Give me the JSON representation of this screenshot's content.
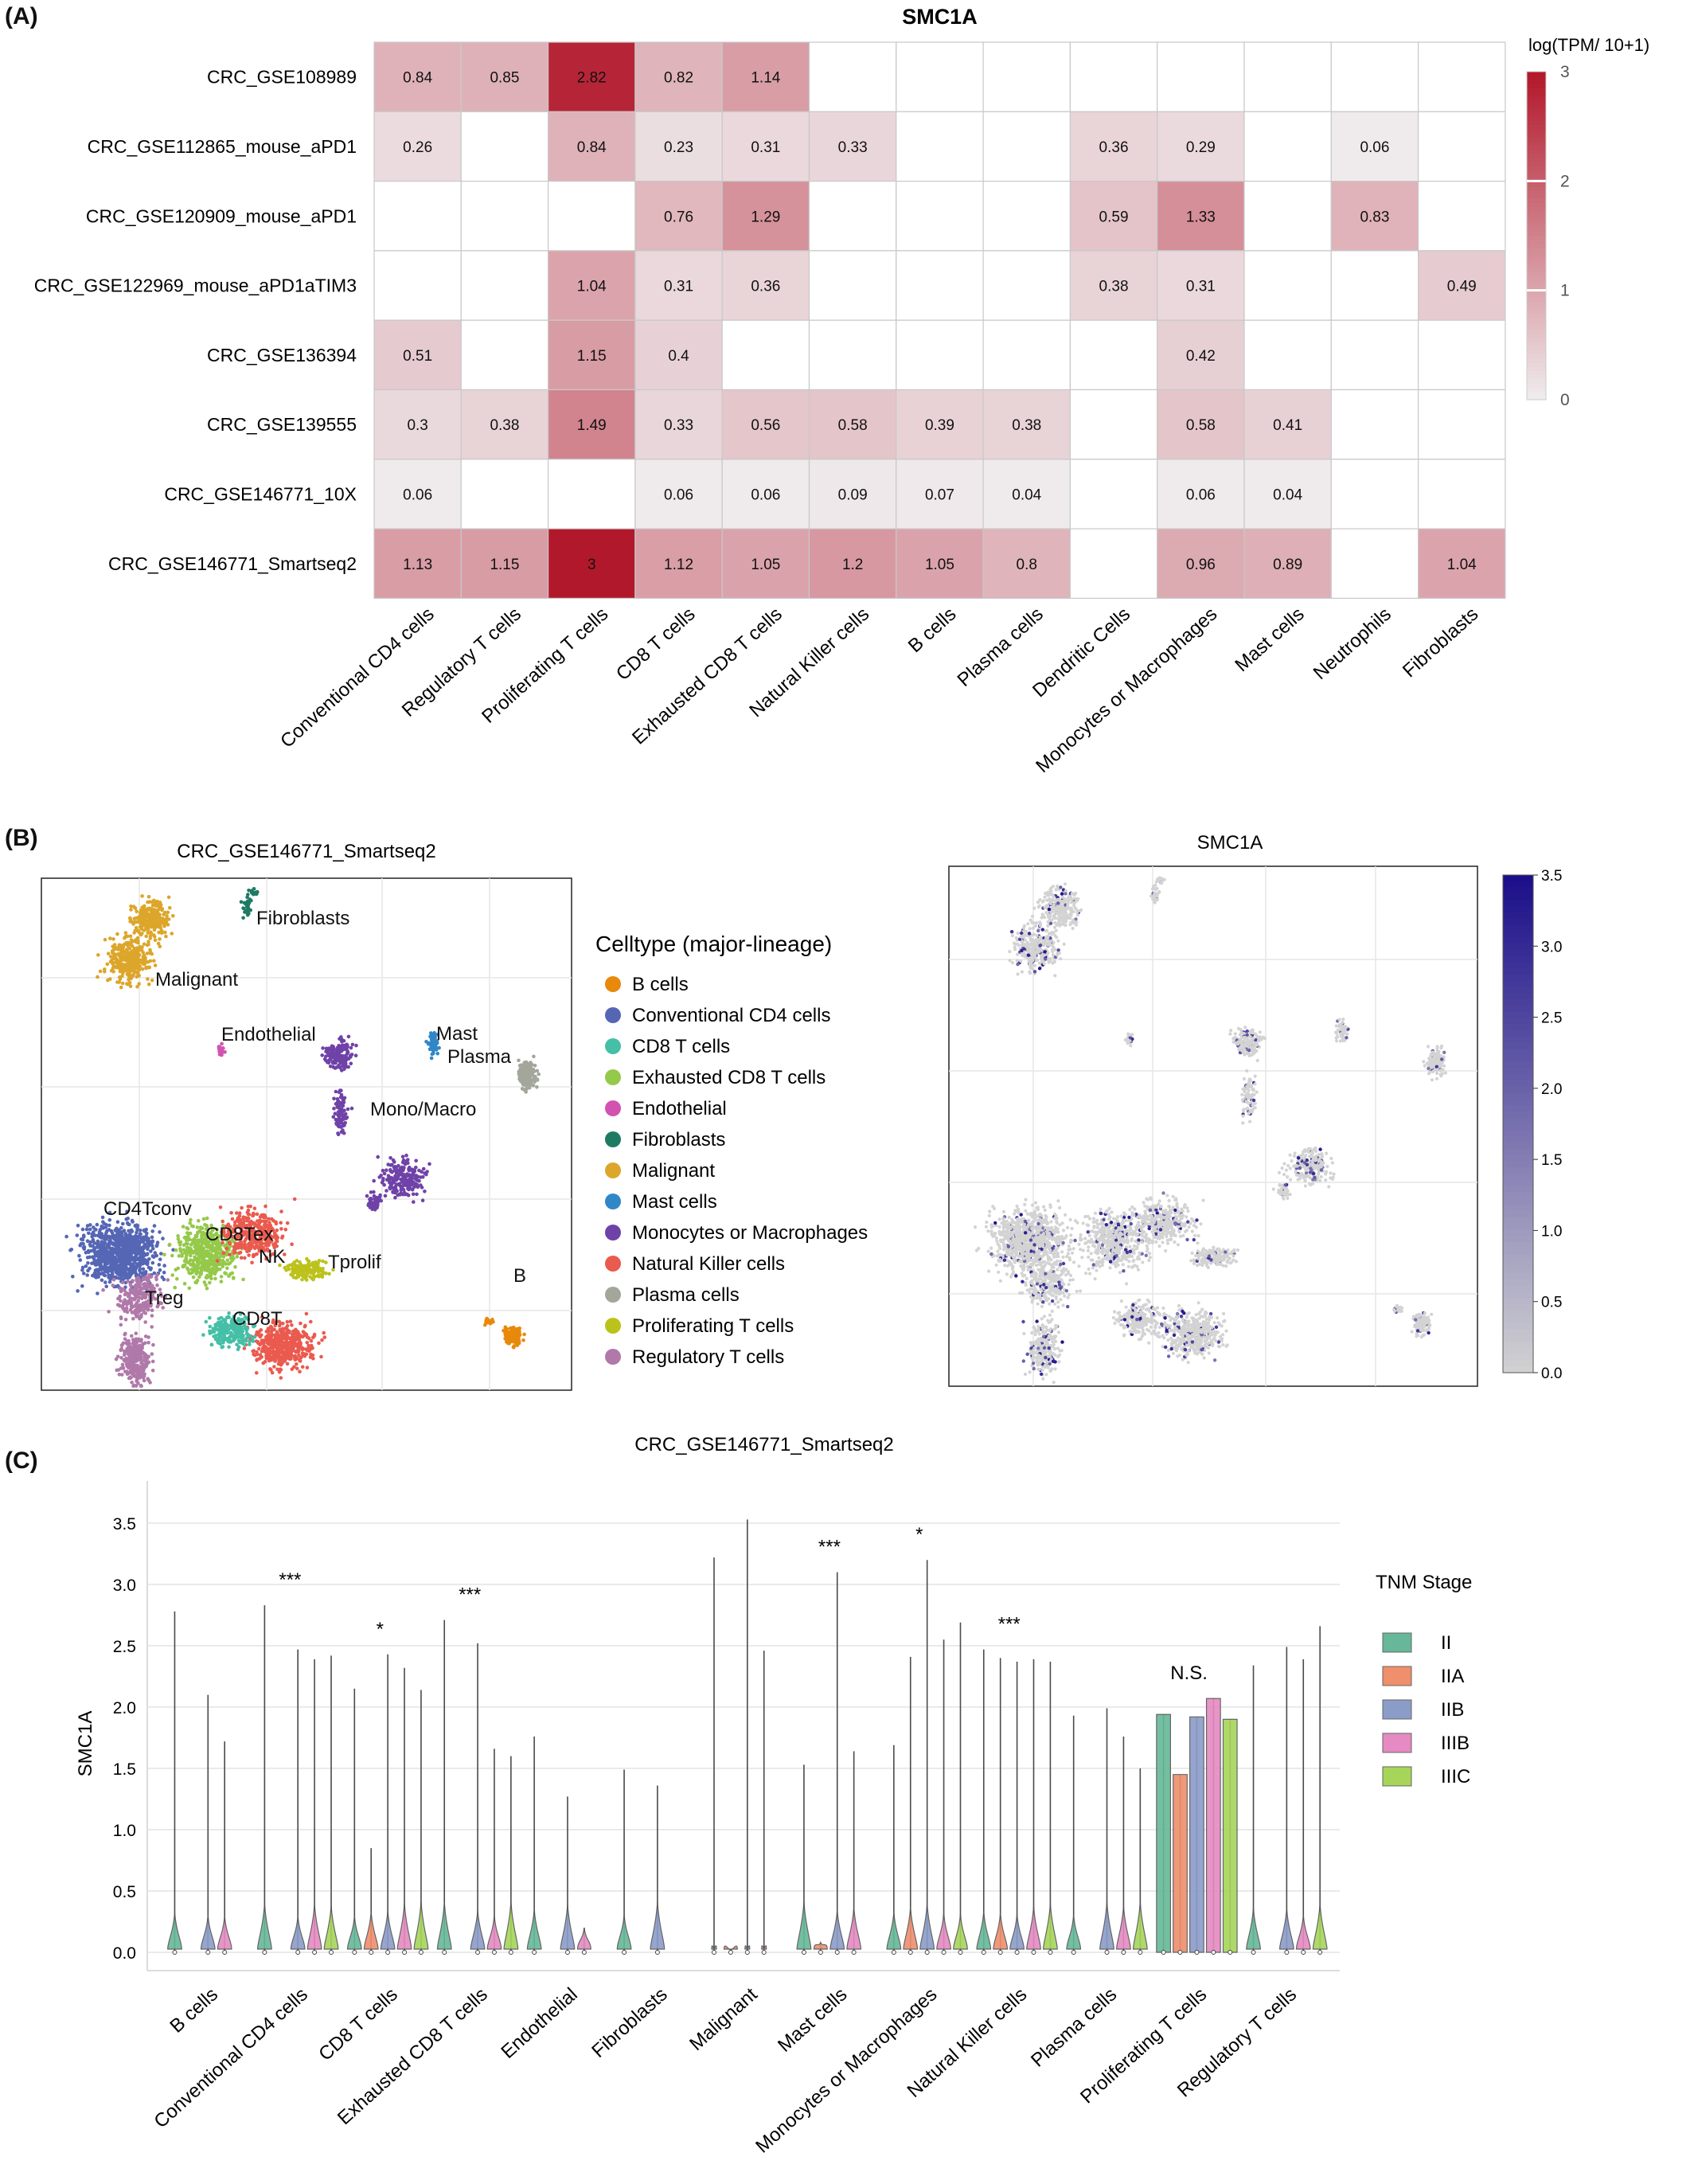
{
  "panels": {
    "a_label": "(A)",
    "b_label": "(B)",
    "c_label": "(C)"
  },
  "chart_data": [
    {
      "id": "heatmap",
      "type": "heatmap",
      "title": "SMC1A",
      "colorbar_title": "log(TPM/ 10+1)",
      "colorbar_ticks": [
        0,
        1,
        2,
        3
      ],
      "vmin": 0,
      "vmax": 3,
      "color_low": "#f0eef0",
      "color_high": "#b2182b",
      "rows": [
        "CRC_GSE108989",
        "CRC_GSE112865_mouse_aPD1",
        "CRC_GSE120909_mouse_aPD1",
        "CRC_GSE122969_mouse_aPD1aTIM3",
        "CRC_GSE136394",
        "CRC_GSE139555",
        "CRC_GSE146771_10X",
        "CRC_GSE146771_Smartseq2"
      ],
      "columns": [
        "Conventional CD4 cells",
        "Regulatory T cells",
        "Proliferating T cells",
        "CD8 T cells",
        "Exhausted CD8 T cells",
        "Natural Killer cells",
        "B cells",
        "Plasma cells",
        "Dendritic Cells",
        "Monocytes or Macrophages",
        "Mast cells",
        "Neutrophils",
        "Fibroblasts"
      ],
      "values": [
        [
          0.84,
          0.85,
          2.82,
          0.82,
          1.14,
          null,
          null,
          null,
          null,
          null,
          null,
          null,
          null
        ],
        [
          0.26,
          null,
          0.84,
          0.23,
          0.31,
          0.33,
          null,
          null,
          0.36,
          0.29,
          null,
          0.06,
          null
        ],
        [
          null,
          null,
          null,
          0.76,
          1.29,
          null,
          null,
          null,
          0.59,
          1.33,
          null,
          0.83,
          null
        ],
        [
          null,
          null,
          1.04,
          0.31,
          0.36,
          null,
          null,
          null,
          0.38,
          0.31,
          null,
          null,
          0.49
        ],
        [
          0.51,
          null,
          1.15,
          0.4,
          null,
          null,
          null,
          null,
          null,
          0.42,
          null,
          null,
          null
        ],
        [
          0.3,
          0.38,
          1.49,
          0.33,
          0.56,
          0.58,
          0.39,
          0.38,
          null,
          0.58,
          0.41,
          null,
          null
        ],
        [
          0.06,
          null,
          null,
          0.06,
          0.06,
          0.09,
          0.07,
          0.04,
          null,
          0.06,
          0.04,
          null,
          null
        ],
        [
          1.13,
          1.15,
          3,
          1.12,
          1.05,
          1.2,
          1.05,
          0.8,
          null,
          0.96,
          0.89,
          null,
          1.04
        ]
      ]
    },
    {
      "id": "umap_celltype",
      "type": "scatter",
      "title": "CRC_GSE146771_Smartseq2",
      "legend_title": "Celltype (major-lineage)",
      "legend_position": "right",
      "legend": [
        {
          "name": "B cells",
          "color": "#e8890c"
        },
        {
          "name": "Conventional CD4 cells",
          "color": "#5566b5"
        },
        {
          "name": "CD8 T cells",
          "color": "#45bfa7"
        },
        {
          "name": "Exhausted CD8 T cells",
          "color": "#95c94a"
        },
        {
          "name": "Endothelial",
          "color": "#d252b0"
        },
        {
          "name": "Fibroblasts",
          "color": "#1f7a64"
        },
        {
          "name": "Malignant",
          "color": "#dca62b"
        },
        {
          "name": "Mast cells",
          "color": "#2f87c8"
        },
        {
          "name": "Monocytes or Macrophages",
          "color": "#6f42a8"
        },
        {
          "name": "Natural Killer cells",
          "color": "#ea5a4e"
        },
        {
          "name": "Plasma cells",
          "color": "#a3a69a"
        },
        {
          "name": "Proliferating T cells",
          "color": "#bcc21c"
        },
        {
          "name": "Regulatory T cells",
          "color": "#b079aa"
        }
      ],
      "cluster_labels": [
        "Fibroblasts",
        "Malignant",
        "Endothelial",
        "Mast",
        "Plasma",
        "Mono/Macro",
        "CD4Tconv",
        "CD8Tex",
        "NK",
        "Tprolif",
        "B",
        "Treg",
        "CD8T"
      ]
    },
    {
      "id": "umap_expression",
      "type": "scatter",
      "title": "SMC1A",
      "colorbar_ticks": [
        "0.0",
        "0.5",
        "1.0",
        "1.5",
        "2.0",
        "2.5",
        "3.0",
        "3.5"
      ],
      "colorbar_low": "#d3d3d3",
      "colorbar_high": "#1c0f8a",
      "range": [
        0,
        3.5
      ]
    },
    {
      "id": "violin",
      "type": "violin",
      "title": "CRC_GSE146771_Smartseq2",
      "ylabel": "SMC1A",
      "xlabel": "",
      "ylim": [
        0,
        3.5
      ],
      "yticks": [
        "0.0",
        "0.5",
        "1.0",
        "1.5",
        "2.0",
        "2.5",
        "3.0",
        "3.5"
      ],
      "legend_title": "TNM Stage",
      "legend_position": "right",
      "series": [
        {
          "name": "II",
          "color": "#66b898"
        },
        {
          "name": "IIA",
          "color": "#ef8f6c"
        },
        {
          "name": "IIB",
          "color": "#8b9cc8"
        },
        {
          "name": "IIIB",
          "color": "#e58ac2"
        },
        {
          "name": "IIIC",
          "color": "#a6d55a"
        }
      ],
      "categories": [
        "B cells",
        "Conventional CD4 cells",
        "CD8 T cells",
        "Exhausted CD8 T cells",
        "Endothelial",
        "Fibroblasts",
        "Malignant",
        "Mast cells",
        "Monocytes or Macrophages",
        "Natural Killer cells",
        "Plasma cells",
        "Proliferating T cells",
        "Regulatory T cells"
      ],
      "significance": [
        "",
        "***",
        "*",
        "***",
        "",
        "",
        "",
        "***",
        "*",
        "***",
        "",
        "N.S.",
        ""
      ],
      "max_values": [
        [
          2.78,
          null,
          2.1,
          1.72,
          null
        ],
        [
          2.83,
          null,
          2.47,
          2.39,
          2.42
        ],
        [
          2.15,
          0.85,
          2.43,
          2.32,
          2.14
        ],
        [
          2.71,
          null,
          2.52,
          1.66,
          1.6
        ],
        [
          1.76,
          null,
          1.27,
          0.2,
          null
        ],
        [
          1.49,
          null,
          1.36,
          null,
          null
        ],
        [
          3.22,
          0.02,
          3.53,
          2.46,
          null
        ],
        [
          1.53,
          0.08,
          3.1,
          1.64,
          null
        ],
        [
          1.69,
          2.41,
          3.2,
          2.55,
          2.69
        ],
        [
          2.47,
          2.4,
          2.37,
          2.39,
          2.37
        ],
        [
          1.93,
          null,
          1.99,
          1.76,
          1.5
        ],
        [
          1.94,
          1.45,
          1.92,
          2.07,
          1.9
        ],
        [
          2.34,
          null,
          2.49,
          2.39,
          2.66
        ]
      ]
    }
  ]
}
